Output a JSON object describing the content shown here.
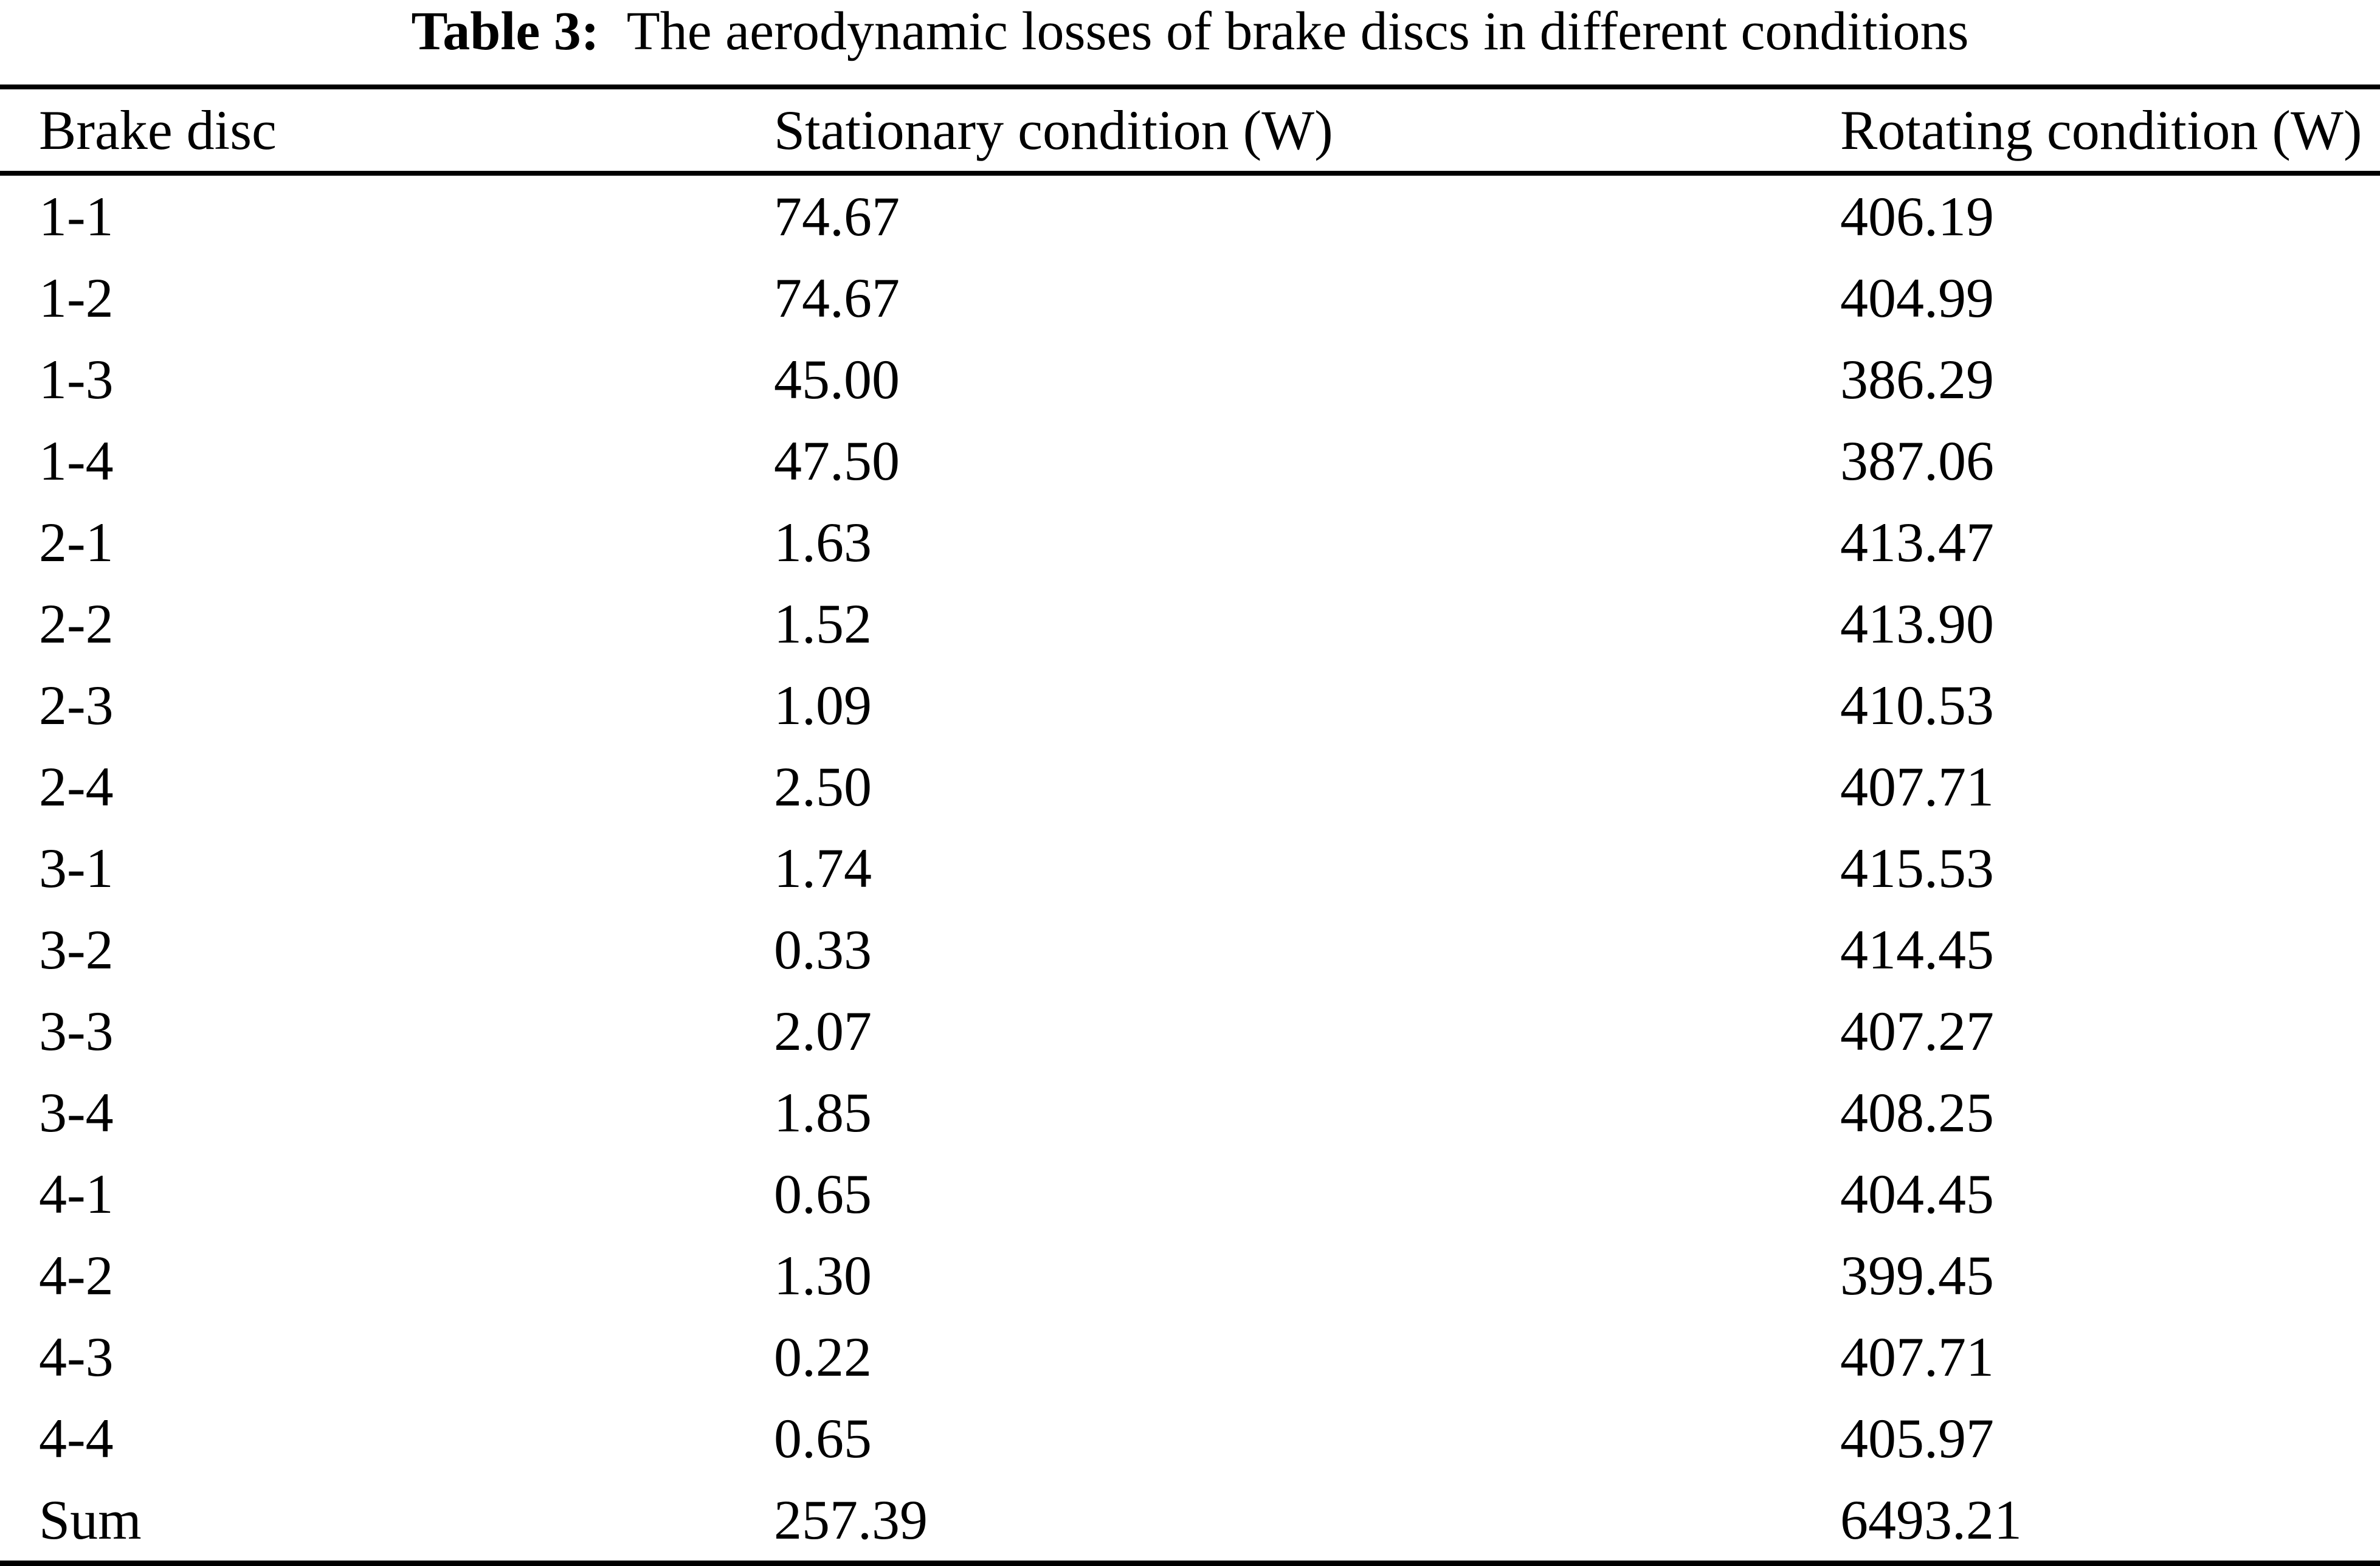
{
  "page": {
    "background_color": "#ffffff",
    "text_color": "#000000"
  },
  "caption": {
    "label": "Table 3:",
    "title": "The aerodynamic losses of brake discs in different conditions"
  },
  "table": {
    "columns": [
      "Brake disc",
      "Stationary condition (W)",
      "Rotating condition (W)"
    ],
    "rows": [
      {
        "disc": "1-1",
        "stationary": "74.67",
        "rotating": "406.19"
      },
      {
        "disc": "1-2",
        "stationary": "74.67",
        "rotating": "404.99"
      },
      {
        "disc": "1-3",
        "stationary": "45.00",
        "rotating": "386.29"
      },
      {
        "disc": "1-4",
        "stationary": "47.50",
        "rotating": "387.06"
      },
      {
        "disc": "2-1",
        "stationary": "1.63",
        "rotating": "413.47"
      },
      {
        "disc": "2-2",
        "stationary": "1.52",
        "rotating": "413.90"
      },
      {
        "disc": "2-3",
        "stationary": "1.09",
        "rotating": "410.53"
      },
      {
        "disc": "2-4",
        "stationary": "2.50",
        "rotating": "407.71"
      },
      {
        "disc": "3-1",
        "stationary": "1.74",
        "rotating": "415.53"
      },
      {
        "disc": "3-2",
        "stationary": "0.33",
        "rotating": "414.45"
      },
      {
        "disc": "3-3",
        "stationary": "2.07",
        "rotating": "407.27"
      },
      {
        "disc": "3-4",
        "stationary": "1.85",
        "rotating": "408.25"
      },
      {
        "disc": "4-1",
        "stationary": "0.65",
        "rotating": "404.45"
      },
      {
        "disc": "4-2",
        "stationary": "1.30",
        "rotating": "399.45"
      },
      {
        "disc": "4-3",
        "stationary": "0.22",
        "rotating": "407.71"
      },
      {
        "disc": "4-4",
        "stationary": "0.65",
        "rotating": "405.97"
      },
      {
        "disc": "Sum",
        "stationary": "257.39",
        "rotating": "6493.21"
      }
    ]
  }
}
